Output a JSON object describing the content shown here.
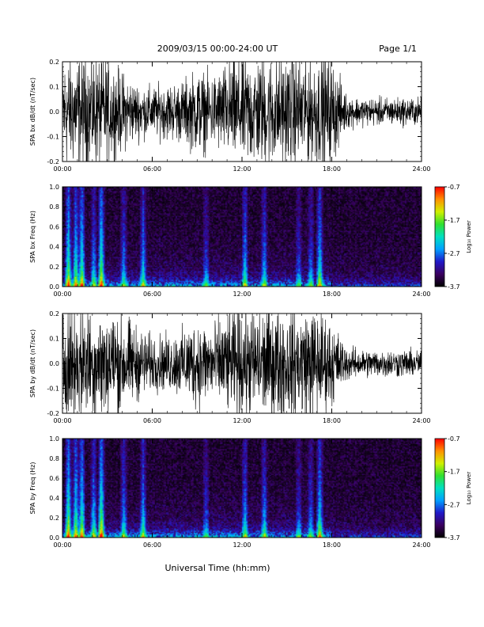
{
  "header": {
    "title": "2009/03/15  00:00-24:00 UT",
    "page": "Page 1/1"
  },
  "footer": {
    "xlabel": "Universal Time (hh:mm)"
  },
  "colorbar": {
    "label": "Log₁₀ Power",
    "ticks": [
      "-0.7",
      "-1.7",
      "-2.7",
      "-3.7"
    ],
    "values": [
      -0.7,
      -1.7,
      -2.7,
      -3.7
    ],
    "range": [
      -3.7,
      -0.7
    ],
    "colors": [
      "#000000",
      "#3a005f",
      "#2018c8",
      "#00a0ff",
      "#00e0c0",
      "#30e030",
      "#d0f000",
      "#ff9000",
      "#ff0000"
    ]
  },
  "chart_data": [
    {
      "type": "line",
      "ylabel": "SPA bx dB/dt (nT/sec)",
      "xlim": [
        0,
        24
      ],
      "ylim": [
        -0.2,
        0.2
      ],
      "xticks": [
        "00:00",
        "06:00",
        "12:00",
        "18:00",
        "24:00"
      ],
      "yticks": [
        "-0.2",
        "-0.1",
        "0.0",
        "0.1",
        "0.2"
      ],
      "ytick_values": [
        -0.2,
        -0.1,
        0.0,
        0.1,
        0.2
      ],
      "x_hours": [
        0,
        1,
        2,
        3,
        4,
        5,
        6,
        7,
        8,
        9,
        10,
        11,
        12,
        13,
        14,
        15,
        16,
        17,
        18,
        19,
        20,
        21,
        22,
        23,
        24
      ],
      "amplitude": [
        0.2,
        0.2,
        0.2,
        0.19,
        0.14,
        0.1,
        0.09,
        0.1,
        0.11,
        0.15,
        0.13,
        0.17,
        0.2,
        0.2,
        0.2,
        0.2,
        0.2,
        0.2,
        0.19,
        0.06,
        0.05,
        0.05,
        0.05,
        0.05,
        0.05
      ],
      "line_color": "#000000"
    },
    {
      "type": "heatmap",
      "ylabel": "SPA bx Freq (Hz)",
      "xlim": [
        0,
        24
      ],
      "ylim": [
        0,
        1.0
      ],
      "xticks": [
        "00:00",
        "06:00",
        "12:00",
        "18:00",
        "24:00"
      ],
      "yticks": [
        "0.0",
        "0.2",
        "0.4",
        "0.6",
        "0.8",
        "1.0"
      ],
      "ytick_values": [
        0.0,
        0.2,
        0.4,
        0.6,
        0.8,
        1.0
      ],
      "zlabel": "Log₁₀ Power",
      "zlim": [
        -3.7,
        -0.7
      ],
      "burst_hours": [
        0.4,
        0.9,
        1.3,
        2.1,
        2.6,
        4.1,
        5.4,
        9.6,
        12.2,
        13.5,
        15.8,
        16.6,
        17.2
      ],
      "burst_strength": [
        0.9,
        0.8,
        0.85,
        0.5,
        0.95,
        0.45,
        0.55,
        0.35,
        0.6,
        0.5,
        0.35,
        0.4,
        0.7
      ]
    },
    {
      "type": "line",
      "ylabel": "SPA by dB/dt (nT/sec)",
      "xlim": [
        0,
        24
      ],
      "ylim": [
        -0.2,
        0.2
      ],
      "xticks": [
        "00:00",
        "06:00",
        "12:00",
        "18:00",
        "24:00"
      ],
      "yticks": [
        "-0.2",
        "-0.1",
        "0.0",
        "0.1",
        "0.2"
      ],
      "ytick_values": [
        -0.2,
        -0.1,
        0.0,
        0.1,
        0.2
      ],
      "x_hours": [
        0,
        1,
        2,
        3,
        4,
        5,
        6,
        7,
        8,
        9,
        10,
        11,
        12,
        13,
        14,
        15,
        16,
        17,
        18,
        19,
        20,
        21,
        22,
        23,
        24
      ],
      "amplitude": [
        0.2,
        0.2,
        0.2,
        0.2,
        0.18,
        0.13,
        0.1,
        0.1,
        0.12,
        0.16,
        0.14,
        0.18,
        0.2,
        0.2,
        0.2,
        0.2,
        0.2,
        0.2,
        0.15,
        0.06,
        0.05,
        0.05,
        0.05,
        0.05,
        0.05
      ],
      "line_color": "#000000"
    },
    {
      "type": "heatmap",
      "ylabel": "SPA by Freq (Hz)",
      "xlim": [
        0,
        24
      ],
      "ylim": [
        0,
        1.0
      ],
      "xticks": [
        "00:00",
        "06:00",
        "12:00",
        "18:00",
        "24:00"
      ],
      "yticks": [
        "0.0",
        "0.2",
        "0.4",
        "0.6",
        "0.8",
        "1.0"
      ],
      "ytick_values": [
        0.0,
        0.2,
        0.4,
        0.6,
        0.8,
        1.0
      ],
      "zlabel": "Log₁₀ Power",
      "zlim": [
        -3.7,
        -0.7
      ],
      "burst_hours": [
        0.4,
        0.9,
        1.3,
        2.1,
        2.6,
        4.1,
        5.4,
        9.6,
        12.2,
        13.5,
        15.8,
        16.6,
        17.2
      ],
      "burst_strength": [
        0.95,
        0.8,
        0.85,
        0.6,
        1.0,
        0.5,
        0.55,
        0.35,
        0.55,
        0.5,
        0.35,
        0.4,
        0.7
      ]
    }
  ]
}
